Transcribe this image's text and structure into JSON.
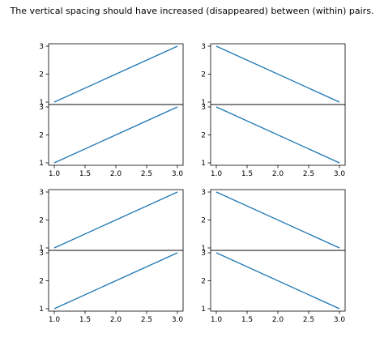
{
  "figure": {
    "title": "The vertical spacing should have increased (disappeared) between (within) pairs."
  },
  "chart_data": [
    {
      "type": "line",
      "row": 1,
      "col": 1,
      "x": [
        1,
        3
      ],
      "y": [
        1,
        3
      ],
      "xlim": [
        1,
        3
      ],
      "ylim": [
        1,
        3
      ],
      "yticks": [
        1,
        2,
        3
      ],
      "xticks": [],
      "color": "#1f77b4"
    },
    {
      "type": "line",
      "row": 2,
      "col": 1,
      "x": [
        1,
        3
      ],
      "y": [
        1,
        3
      ],
      "xlim": [
        1,
        3
      ],
      "ylim": [
        1,
        3
      ],
      "yticks": [
        1,
        2,
        3
      ],
      "xticks": [
        1.0,
        1.5,
        2.0,
        2.5,
        3.0
      ],
      "color": "#1f77b4"
    },
    {
      "type": "line",
      "row": 1,
      "col": 2,
      "x": [
        1,
        3
      ],
      "y": [
        3,
        1
      ],
      "xlim": [
        1,
        3
      ],
      "ylim": [
        1,
        3
      ],
      "yticks": [
        1,
        2,
        3
      ],
      "xticks": [],
      "color": "#1f77b4"
    },
    {
      "type": "line",
      "row": 2,
      "col": 2,
      "x": [
        1,
        3
      ],
      "y": [
        3,
        1
      ],
      "xlim": [
        1,
        3
      ],
      "ylim": [
        1,
        3
      ],
      "yticks": [
        1,
        2,
        3
      ],
      "xticks": [
        1.0,
        1.5,
        2.0,
        2.5,
        3.0
      ],
      "color": "#1f77b4"
    },
    {
      "type": "line",
      "row": 3,
      "col": 1,
      "x": [
        1,
        3
      ],
      "y": [
        1,
        3
      ],
      "xlim": [
        1,
        3
      ],
      "ylim": [
        1,
        3
      ],
      "yticks": [
        1,
        2,
        3
      ],
      "xticks": [],
      "color": "#1f77b4"
    },
    {
      "type": "line",
      "row": 4,
      "col": 1,
      "x": [
        1,
        3
      ],
      "y": [
        1,
        3
      ],
      "xlim": [
        1,
        3
      ],
      "ylim": [
        1,
        3
      ],
      "yticks": [
        1,
        2,
        3
      ],
      "xticks": [
        1.0,
        1.5,
        2.0,
        2.5,
        3.0
      ],
      "color": "#1f77b4"
    },
    {
      "type": "line",
      "row": 3,
      "col": 2,
      "x": [
        1,
        3
      ],
      "y": [
        3,
        1
      ],
      "xlim": [
        1,
        3
      ],
      "ylim": [
        1,
        3
      ],
      "yticks": [
        1,
        2,
        3
      ],
      "xticks": [],
      "color": "#1f77b4"
    },
    {
      "type": "line",
      "row": 4,
      "col": 2,
      "x": [
        1,
        3
      ],
      "y": [
        3,
        1
      ],
      "xlim": [
        1,
        3
      ],
      "ylim": [
        1,
        3
      ],
      "yticks": [
        1,
        2,
        3
      ],
      "xticks": [
        1.0,
        1.5,
        2.0,
        2.5,
        3.0
      ],
      "color": "#1f77b4"
    }
  ]
}
